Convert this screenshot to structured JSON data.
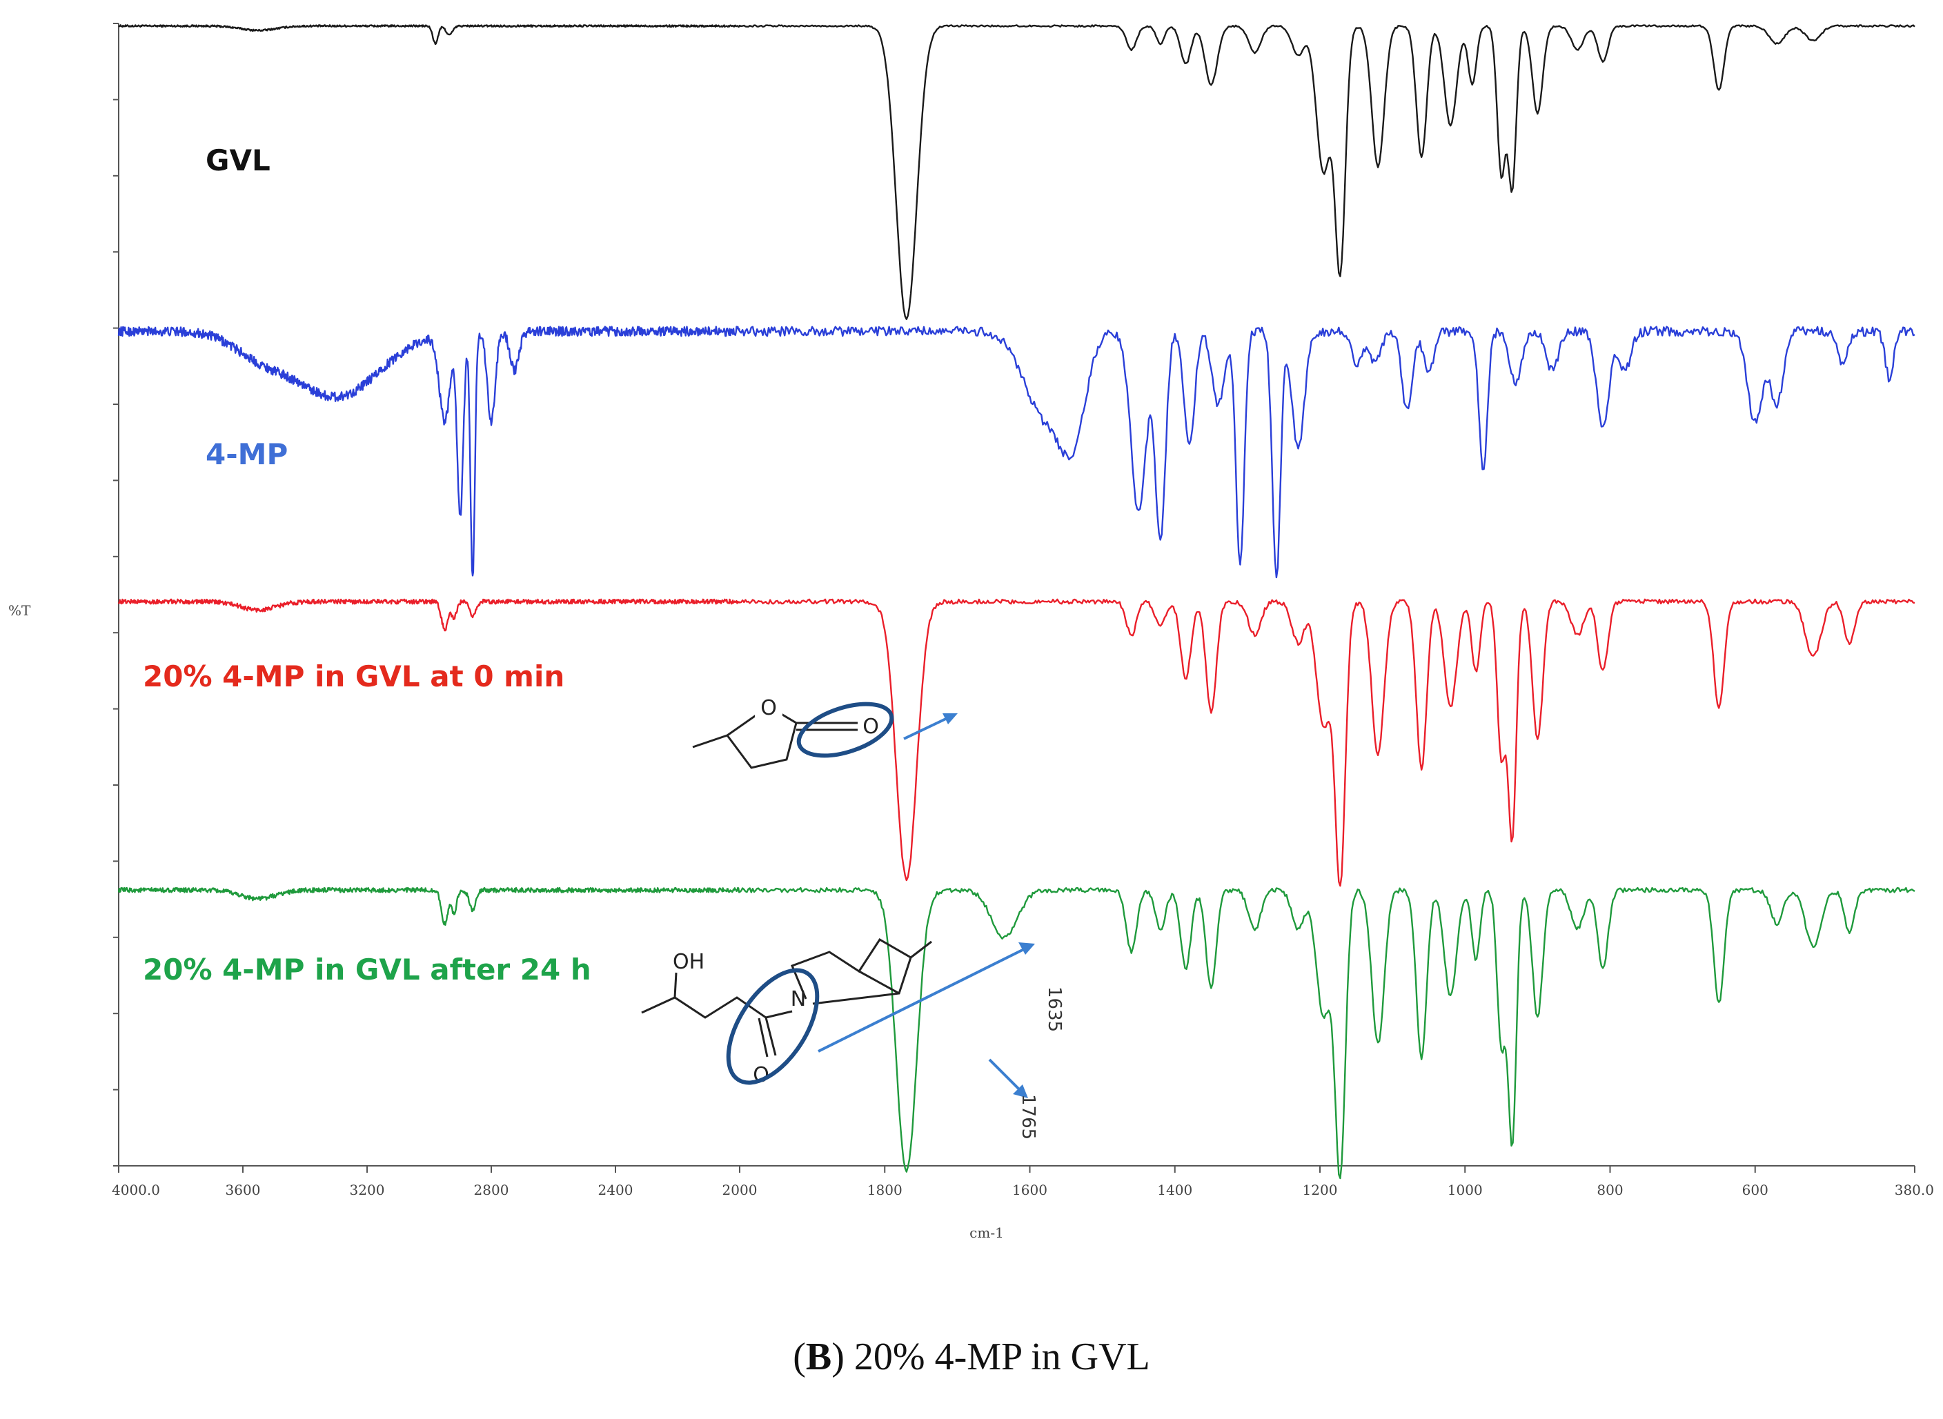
{
  "chart_data": {
    "type": "line",
    "title": "",
    "xlabel": "cm-1",
    "ylabel": "%T",
    "xlim": [
      4000.0,
      380.0
    ],
    "x_reversed": true,
    "x_ticks": [
      4000,
      3600,
      3200,
      2800,
      2400,
      2000,
      1800,
      1600,
      1400,
      1200,
      1000,
      800,
      600,
      380
    ],
    "x_tick_labels": [
      "4000.0",
      "3600",
      "3200",
      "2800",
      "2400",
      "2000",
      "1800",
      "1600",
      "1400",
      "1200",
      "1000",
      "800",
      "600",
      "380.0"
    ],
    "y_tick_count": 16,
    "grid": false,
    "series": [
      {
        "name": "GVL",
        "color": "#1a1a1a",
        "label_color": "#111111",
        "baseline": 0.982,
        "noise": 0.003,
        "peaks": [
          [
            3550,
            0.015,
            80
          ],
          [
            2980,
            0.06,
            12
          ],
          [
            2935,
            0.03,
            15
          ],
          [
            1770,
            1.0,
            20
          ],
          [
            1460,
            0.08,
            10
          ],
          [
            1420,
            0.06,
            8
          ],
          [
            1385,
            0.13,
            10
          ],
          [
            1350,
            0.2,
            12
          ],
          [
            1290,
            0.09,
            12
          ],
          [
            1230,
            0.1,
            12
          ],
          [
            1195,
            0.5,
            14
          ],
          [
            1172,
            0.82,
            10
          ],
          [
            1120,
            0.48,
            12
          ],
          [
            1060,
            0.45,
            10
          ],
          [
            1020,
            0.34,
            12
          ],
          [
            990,
            0.2,
            8
          ],
          [
            950,
            0.5,
            8
          ],
          [
            935,
            0.55,
            8
          ],
          [
            900,
            0.3,
            10
          ],
          [
            845,
            0.08,
            12
          ],
          [
            810,
            0.12,
            10
          ],
          [
            650,
            0.22,
            10
          ],
          [
            570,
            0.06,
            15
          ],
          [
            520,
            0.05,
            15
          ]
        ]
      },
      {
        "name": "4-MP",
        "color": "#2a3fd8",
        "label_color": "#3f6fd6",
        "baseline": 0.925,
        "noise": 0.018,
        "peaks": [
          [
            3300,
            0.25,
            200
          ],
          [
            3550,
            0.07,
            120
          ],
          [
            2950,
            0.33,
            25
          ],
          [
            2900,
            0.7,
            14
          ],
          [
            2860,
            0.95,
            10
          ],
          [
            2800,
            0.35,
            18
          ],
          [
            2725,
            0.15,
            20
          ],
          [
            1580,
            0.32,
            40
          ],
          [
            1540,
            0.35,
            25
          ],
          [
            1450,
            0.7,
            15
          ],
          [
            1420,
            0.8,
            10
          ],
          [
            1380,
            0.45,
            10
          ],
          [
            1340,
            0.28,
            12
          ],
          [
            1310,
            0.9,
            8
          ],
          [
            1260,
            0.95,
            8
          ],
          [
            1230,
            0.45,
            12
          ],
          [
            1150,
            0.12,
            10
          ],
          [
            1125,
            0.12,
            12
          ],
          [
            1080,
            0.3,
            10
          ],
          [
            1050,
            0.15,
            10
          ],
          [
            975,
            0.55,
            8
          ],
          [
            930,
            0.2,
            12
          ],
          [
            880,
            0.15,
            12
          ],
          [
            810,
            0.38,
            12
          ],
          [
            780,
            0.15,
            12
          ],
          [
            600,
            0.35,
            15
          ],
          [
            570,
            0.28,
            12
          ],
          [
            480,
            0.12,
            10
          ],
          [
            415,
            0.18,
            8
          ]
        ]
      },
      {
        "name": "20% 4-MP in GVL at 0 min",
        "color": "#ea1f2a",
        "label_color": "#e42a1d",
        "baseline": 0.975,
        "noise": 0.008,
        "peaks": [
          [
            3550,
            0.03,
            80
          ],
          [
            2950,
            0.1,
            15
          ],
          [
            2920,
            0.06,
            12
          ],
          [
            2860,
            0.05,
            15
          ],
          [
            1770,
            1.0,
            20
          ],
          [
            1460,
            0.12,
            10
          ],
          [
            1420,
            0.09,
            10
          ],
          [
            1385,
            0.28,
            10
          ],
          [
            1350,
            0.4,
            10
          ],
          [
            1290,
            0.12,
            12
          ],
          [
            1230,
            0.15,
            12
          ],
          [
            1195,
            0.45,
            14
          ],
          [
            1172,
            1.0,
            10
          ],
          [
            1120,
            0.55,
            12
          ],
          [
            1060,
            0.6,
            10
          ],
          [
            1020,
            0.38,
            12
          ],
          [
            985,
            0.25,
            8
          ],
          [
            950,
            0.55,
            8
          ],
          [
            935,
            0.85,
            8
          ],
          [
            900,
            0.5,
            10
          ],
          [
            845,
            0.12,
            12
          ],
          [
            810,
            0.25,
            10
          ],
          [
            650,
            0.38,
            10
          ],
          [
            520,
            0.2,
            15
          ],
          [
            470,
            0.15,
            10
          ]
        ]
      },
      {
        "name": "20% 4-MP in GVL after 24 h",
        "color": "#1f9a3c",
        "label_color": "#1ea34a",
        "baseline": 0.982,
        "noise": 0.008,
        "peaks": [
          [
            3550,
            0.03,
            80
          ],
          [
            2950,
            0.12,
            15
          ],
          [
            2920,
            0.08,
            12
          ],
          [
            2860,
            0.07,
            15
          ],
          [
            1770,
            1.0,
            20
          ],
          [
            1635,
            0.17,
            25
          ],
          [
            1460,
            0.22,
            10
          ],
          [
            1420,
            0.14,
            10
          ],
          [
            1385,
            0.28,
            10
          ],
          [
            1350,
            0.35,
            10
          ],
          [
            1290,
            0.14,
            12
          ],
          [
            1230,
            0.14,
            12
          ],
          [
            1195,
            0.45,
            14
          ],
          [
            1172,
            1.0,
            10
          ],
          [
            1120,
            0.55,
            12
          ],
          [
            1060,
            0.6,
            10
          ],
          [
            1020,
            0.38,
            12
          ],
          [
            985,
            0.25,
            8
          ],
          [
            950,
            0.55,
            8
          ],
          [
            935,
            0.9,
            8
          ],
          [
            900,
            0.45,
            10
          ],
          [
            845,
            0.14,
            12
          ],
          [
            810,
            0.28,
            10
          ],
          [
            650,
            0.4,
            10
          ],
          [
            570,
            0.12,
            12
          ],
          [
            520,
            0.2,
            15
          ],
          [
            470,
            0.15,
            10
          ]
        ]
      }
    ],
    "peak_labels": [
      "1635",
      "1765"
    ]
  },
  "caption": {
    "bold": "B",
    "open": "(",
    "close": ")",
    "rest": " 20% 4-MP in GVL"
  },
  "molecules": {
    "gvl_atoms": [
      "O",
      "O"
    ],
    "adduct_atoms": [
      "OH",
      "N",
      "O"
    ]
  }
}
